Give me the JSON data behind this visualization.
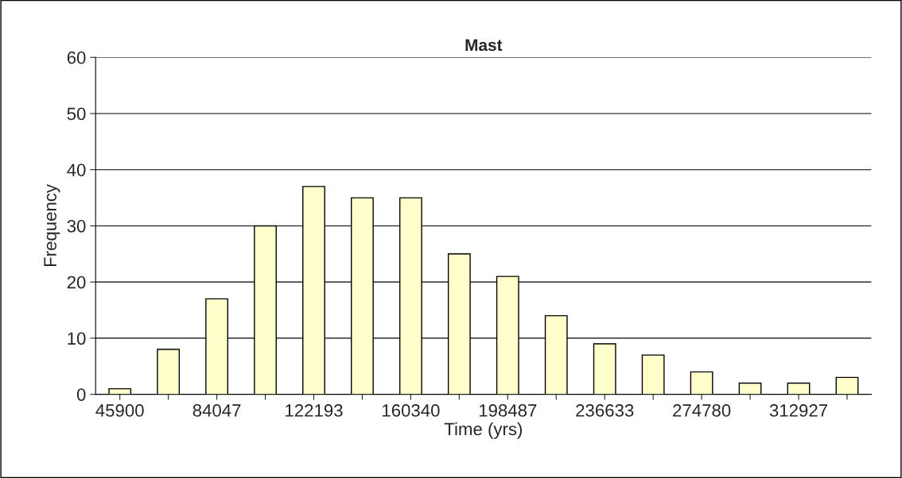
{
  "chart_data": {
    "type": "bar",
    "title": "Mast",
    "xlabel": "Time (yrs)",
    "ylabel": "Frequency",
    "categories": [
      "45900",
      null,
      "84047",
      null,
      "122193",
      null,
      "160340",
      null,
      "198487",
      null,
      "236633",
      null,
      "274780",
      null,
      "312927",
      null
    ],
    "values": [
      1,
      8,
      17,
      30,
      37,
      35,
      35,
      25,
      21,
      14,
      9,
      7,
      4,
      2,
      2,
      3
    ],
    "color": "#ffffcc",
    "ylim": [
      0,
      60
    ],
    "yticks": [
      0,
      10,
      20,
      30,
      40,
      50,
      60
    ],
    "grid": "y",
    "legend": false
  }
}
